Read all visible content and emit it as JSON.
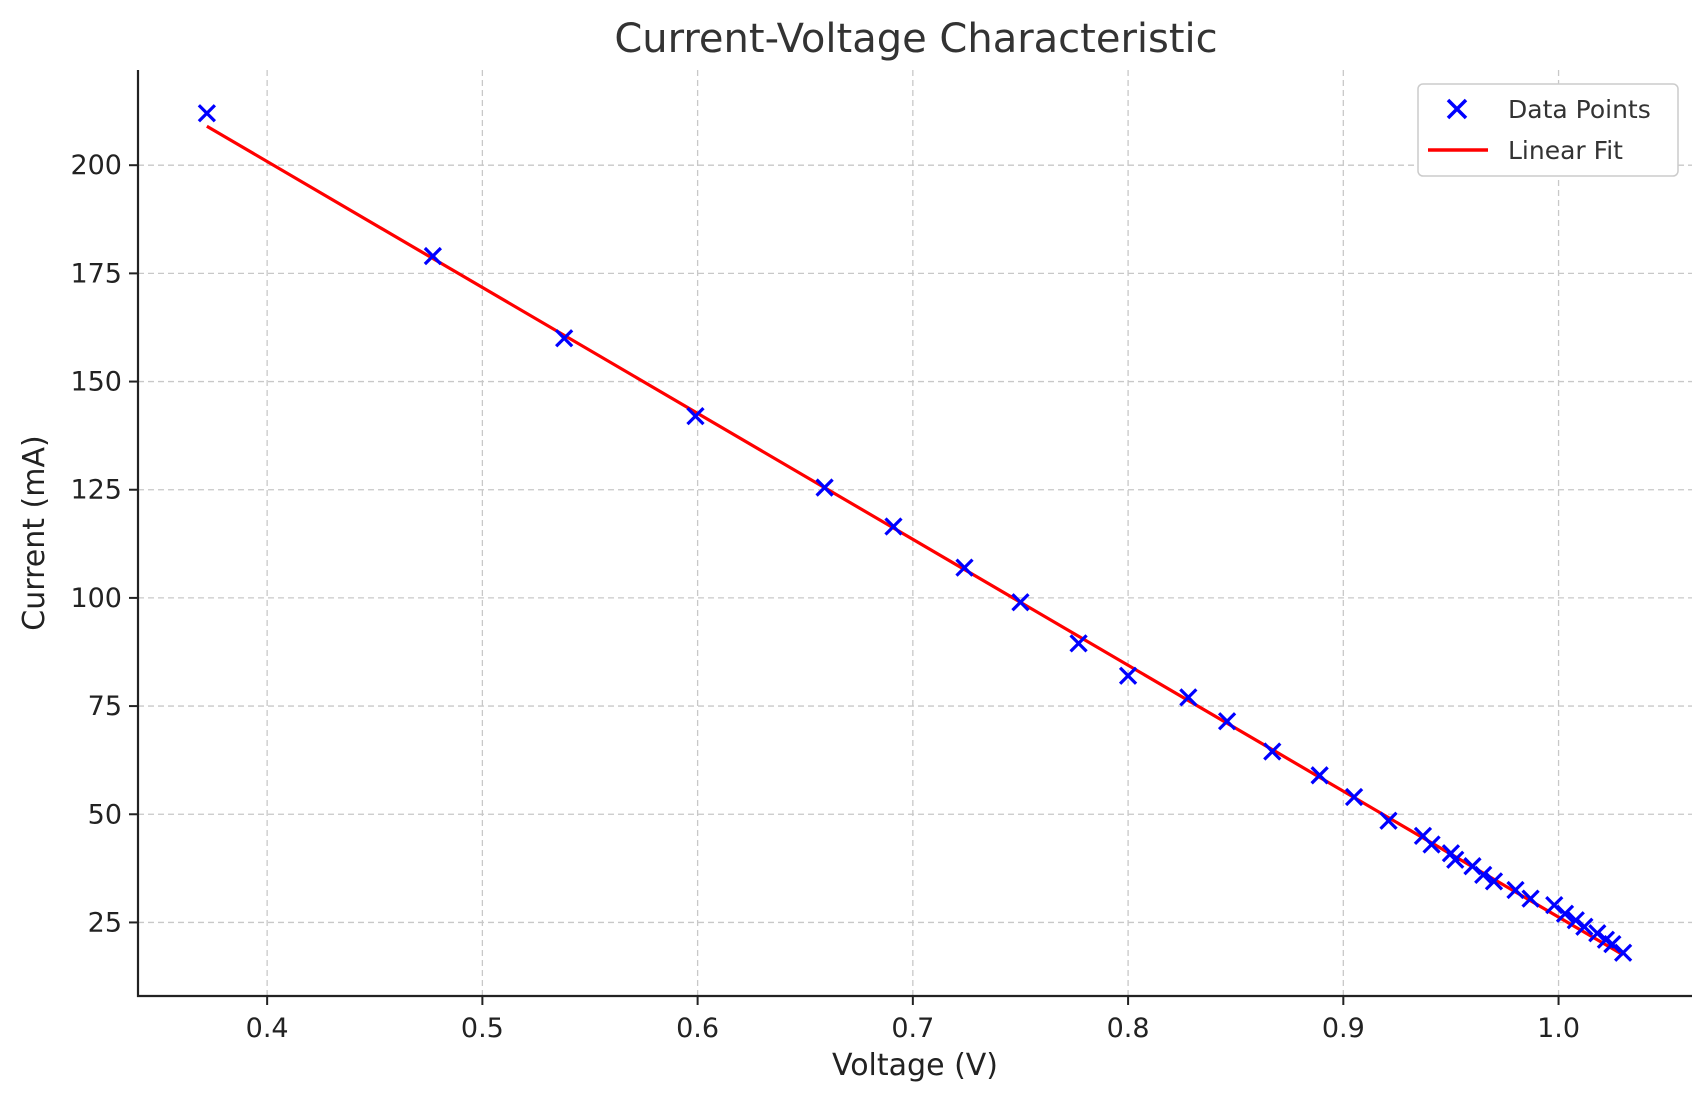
{
  "chart_data": {
    "type": "scatter",
    "title": "Current-Voltage Characteristic",
    "xlabel": "Voltage (V)",
    "ylabel": "Current (mA)",
    "xlim": [
      0.34,
      1.062
    ],
    "ylim": [
      8,
      222
    ],
    "xticks": [
      0.4,
      0.5,
      0.6,
      0.7,
      0.8,
      0.9,
      1.0
    ],
    "xtick_labels": [
      "0.4",
      "0.5",
      "0.6",
      "0.7",
      "0.8",
      "0.9",
      "1.0"
    ],
    "yticks": [
      25,
      50,
      75,
      100,
      125,
      150,
      175,
      200
    ],
    "ytick_labels": [
      "25",
      "50",
      "75",
      "100",
      "125",
      "150",
      "175",
      "200"
    ],
    "grid": true,
    "legend_position": "top-right",
    "series": [
      {
        "name": "Data Points",
        "kind": "scatter",
        "marker": "x",
        "color": "#0000ff",
        "points": [
          [
            0.372,
            212.0
          ],
          [
            0.477,
            179.0
          ],
          [
            0.538,
            160.0
          ],
          [
            0.599,
            142.0
          ],
          [
            0.659,
            125.5
          ],
          [
            0.691,
            116.5
          ],
          [
            0.724,
            107.0
          ],
          [
            0.75,
            99.0
          ],
          [
            0.777,
            89.5
          ],
          [
            0.8,
            82.0
          ],
          [
            0.828,
            77.0
          ],
          [
            0.846,
            71.5
          ],
          [
            0.867,
            64.5
          ],
          [
            0.889,
            59.0
          ],
          [
            0.905,
            54.0
          ],
          [
            0.921,
            48.5
          ],
          [
            0.937,
            45.0
          ],
          [
            0.941,
            43.0
          ],
          [
            0.95,
            41.0
          ],
          [
            0.952,
            39.5
          ],
          [
            0.96,
            38.0
          ],
          [
            0.965,
            36.0
          ],
          [
            0.97,
            34.5
          ],
          [
            0.98,
            32.5
          ],
          [
            0.987,
            30.5
          ],
          [
            0.998,
            29.0
          ],
          [
            1.003,
            27.0
          ],
          [
            1.008,
            25.5
          ],
          [
            1.012,
            24.0
          ],
          [
            1.018,
            22.5
          ],
          [
            1.022,
            21.0
          ],
          [
            1.025,
            20.0
          ],
          [
            1.03,
            18.0
          ]
        ]
      },
      {
        "name": "Linear Fit",
        "kind": "line",
        "color": "#ff0000",
        "x": [
          0.372,
          1.03
        ],
        "y": [
          209.0,
          17.5
        ]
      }
    ]
  }
}
